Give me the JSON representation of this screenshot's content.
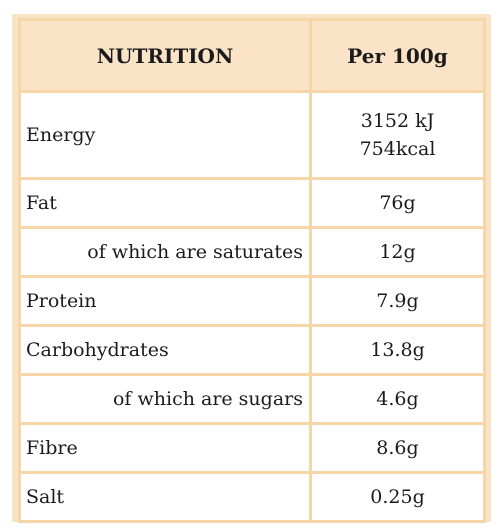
{
  "header": {
    "nutrient_col": "NUTRITION",
    "value_col": "Per 100g"
  },
  "rows": [
    {
      "name": "Energy",
      "value_lines": [
        "3152 kJ",
        "754kcal"
      ],
      "indent": false
    },
    {
      "name": "Fat",
      "value": "76g",
      "indent": false
    },
    {
      "name": "of which are saturates",
      "value": "12g",
      "indent": true
    },
    {
      "name": "Protein",
      "value": "7.9g",
      "indent": false
    },
    {
      "name": "Carbohydrates",
      "value": "13.8g",
      "indent": false
    },
    {
      "name": "of which are sugars",
      "value": "4.6g",
      "indent": true
    },
    {
      "name": "Fibre",
      "value": "8.6g",
      "indent": false
    },
    {
      "name": "Salt",
      "value": "0.25g",
      "indent": false
    }
  ],
  "colors": {
    "border": "#f6d5a6",
    "header_bg": "#fae3c6",
    "cell_bg": "#ffffff",
    "text": "#1b1b1b"
  }
}
